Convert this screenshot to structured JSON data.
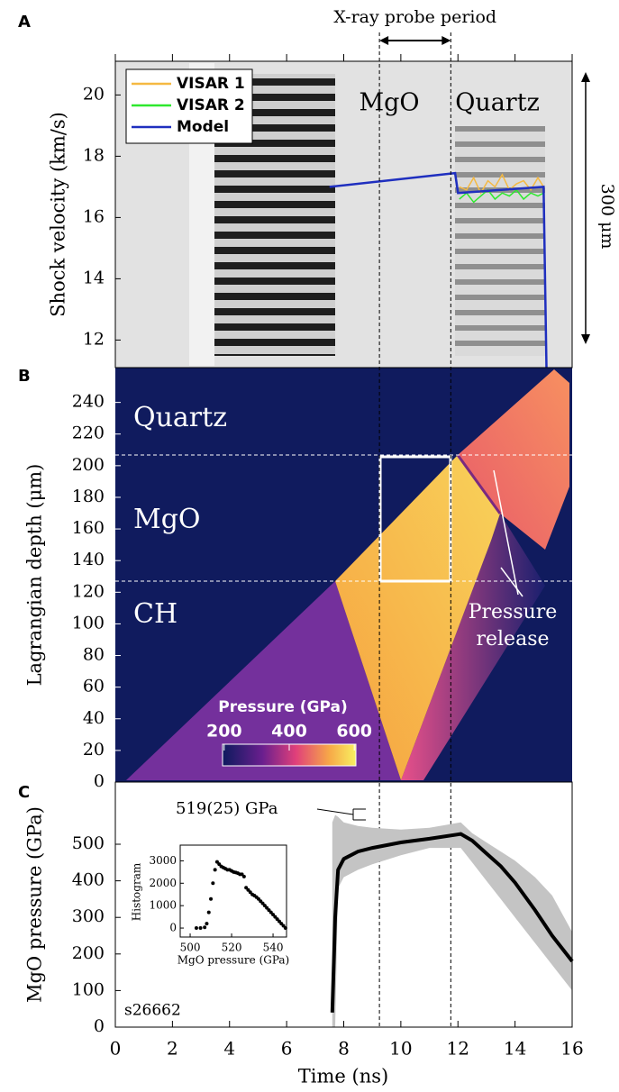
{
  "chart_data": [
    {
      "type": "line",
      "panel_label": "A",
      "ylabel": "Shock velocity (km/s)",
      "ylim": [
        11.1,
        21.1
      ],
      "yticks": [
        12,
        14,
        16,
        18,
        20
      ],
      "probe_label": "X-ray probe period",
      "probe_period": [
        9.25,
        11.75
      ],
      "region_labels": [
        "MgO",
        "Quartz"
      ],
      "scale_label": "300 μm",
      "legend": "upper left",
      "series": [
        {
          "name": "VISAR 1",
          "color": "#f5b942",
          "x": [
            12.05,
            12.3,
            12.55,
            12.8,
            13.05,
            13.3,
            13.55,
            13.8,
            14.05,
            14.3,
            14.55,
            14.8,
            15.0
          ],
          "values": [
            17.0,
            16.9,
            17.3,
            16.8,
            17.2,
            17.0,
            17.4,
            16.9,
            17.1,
            17.2,
            16.9,
            17.3,
            17.0
          ]
        },
        {
          "name": "VISAR 2",
          "color": "#2ee82e",
          "x": [
            12.05,
            12.3,
            12.55,
            12.8,
            13.05,
            13.3,
            13.55,
            13.8,
            14.05,
            14.3,
            14.55,
            14.8,
            15.0
          ],
          "values": [
            16.6,
            16.8,
            16.5,
            16.7,
            16.9,
            16.6,
            16.8,
            16.7,
            16.9,
            16.6,
            16.8,
            16.7,
            16.8
          ]
        },
        {
          "name": "Model",
          "color": "#1f2fbf",
          "x": [
            7.5,
            11.9,
            12.0,
            15.0,
            15.1
          ],
          "values": [
            17.0,
            17.45,
            16.8,
            17.0,
            11.1
          ]
        }
      ]
    },
    {
      "type": "heatmap",
      "panel_label": "B",
      "ylabel": "Lagrangian depth (μm)",
      "ylim": [
        0,
        262
      ],
      "yticks": [
        0,
        20,
        40,
        60,
        80,
        100,
        120,
        140,
        160,
        180,
        200,
        220,
        240
      ],
      "layer_labels": [
        "Quartz",
        "MgO",
        "CH"
      ],
      "annotation_lines": [
        "Pressure",
        "release"
      ],
      "colorbar": {
        "label": "Pressure (GPa)",
        "lim": [
          195,
          605
        ],
        "ticks": [
          200,
          400,
          600
        ]
      }
    },
    {
      "type": "line",
      "panel_label": "C",
      "xlabel": "Time (ns)",
      "ylabel": "MgO pressure (GPa)",
      "xlim": [
        0,
        16
      ],
      "xticks": [
        0,
        2,
        4,
        6,
        8,
        10,
        12,
        14,
        16
      ],
      "ylim": [
        0,
        670
      ],
      "yticks": [
        0,
        100,
        200,
        300,
        400,
        500
      ],
      "annotation": "519(25) GPa",
      "shot_label": "s26662",
      "color": "#000000",
      "band_color": "#c4c4c4",
      "x": [
        7.6,
        7.7,
        7.8,
        8.0,
        8.5,
        9.0,
        10.0,
        11.0,
        12.1,
        12.5,
        13.0,
        13.5,
        14.0,
        14.7,
        15.3,
        16.0
      ],
      "values": [
        40,
        300,
        430,
        460,
        480,
        490,
        505,
        515,
        528,
        510,
        475,
        440,
        395,
        320,
        250,
        180
      ],
      "band_lower": [
        0,
        0,
        380,
        410,
        430,
        445,
        470,
        490,
        490,
        450,
        400,
        350,
        300,
        230,
        170,
        100
      ],
      "band_upper": [
        560,
        580,
        575,
        560,
        550,
        545,
        540,
        545,
        560,
        530,
        505,
        480,
        455,
        410,
        360,
        260
      ]
    },
    {
      "type": "scatter",
      "xlabel": "MgO pressure (GPa)",
      "ylabel": "Histogram",
      "xlim": [
        495.2,
        546.5
      ],
      "xticks": [
        500,
        520,
        540
      ],
      "ylim": [
        -400,
        3700
      ],
      "yticks": [
        0,
        1000,
        2000,
        3000
      ],
      "x": [
        503,
        505,
        507,
        508,
        509,
        510,
        511,
        512,
        513,
        514,
        515,
        516,
        517,
        518,
        519,
        520,
        521,
        522,
        523,
        524,
        525,
        526,
        527,
        528,
        529,
        530,
        531,
        532,
        533,
        534,
        535,
        536,
        537,
        538,
        539,
        540,
        541,
        542,
        543,
        544,
        545,
        546
      ],
      "values": [
        0,
        0,
        30,
        200,
        700,
        1300,
        2000,
        2600,
        2950,
        2850,
        2750,
        2700,
        2650,
        2600,
        2600,
        2550,
        2500,
        2480,
        2450,
        2400,
        2400,
        2300,
        1800,
        1700,
        1600,
        1500,
        1450,
        1380,
        1300,
        1200,
        1100,
        1000,
        900,
        800,
        700,
        600,
        500,
        400,
        300,
        200,
        100,
        0
      ]
    }
  ]
}
